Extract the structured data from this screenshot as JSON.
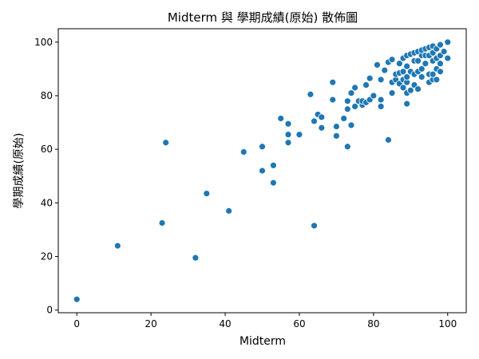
{
  "chart_data": {
    "type": "scatter",
    "title": "Midterm 與 學期成績(原始) 散佈圖",
    "xlabel": "Midterm",
    "ylabel": "學期成績(原始)",
    "xlim": [
      -5,
      105
    ],
    "ylim": [
      -1,
      105
    ],
    "xticks": [
      0,
      20,
      40,
      60,
      80,
      100
    ],
    "yticks": [
      0,
      20,
      40,
      60,
      80,
      100
    ],
    "grid": false,
    "marker_color": "#1f77b4",
    "series": [
      {
        "x": [
          0,
          11,
          23,
          24,
          32,
          35,
          41,
          45,
          50,
          50,
          53,
          53,
          55,
          57,
          57,
          57,
          60,
          63,
          64,
          64,
          65,
          66,
          66,
          69,
          69,
          70,
          70,
          72,
          73,
          73,
          73,
          74,
          74,
          75,
          75,
          76,
          77,
          77,
          78,
          78,
          79,
          79,
          80,
          81,
          82,
          82,
          82,
          83,
          84,
          84,
          85,
          85,
          85,
          86,
          86,
          87,
          87,
          87,
          88,
          88,
          88,
          88,
          89,
          89,
          89,
          89,
          89,
          89,
          90,
          90,
          90,
          91,
          91,
          91,
          91,
          92,
          92,
          92,
          92,
          93,
          93,
          93,
          93,
          94,
          94,
          94,
          95,
          95,
          95,
          95,
          96,
          96,
          96,
          96,
          96,
          97,
          97,
          97,
          97,
          98,
          98,
          98,
          98,
          99,
          100,
          100
        ],
        "y": [
          4,
          24,
          32.5,
          62.5,
          19.5,
          43.5,
          37,
          59,
          52,
          61,
          47.5,
          54,
          71.5,
          62.5,
          65.5,
          69.5,
          65.5,
          80.5,
          31.5,
          70.5,
          73,
          68,
          72,
          78.5,
          85,
          65,
          68.5,
          71.5,
          61,
          75,
          78,
          69,
          81,
          76,
          83,
          78,
          76.5,
          78,
          77.5,
          84,
          78.5,
          86.5,
          80,
          91.5,
          76,
          78.5,
          86,
          89.5,
          63.5,
          92.5,
          81,
          85,
          93.5,
          86,
          88,
          84.5,
          88.5,
          92,
          83,
          86,
          89,
          94,
          77,
          81,
          85,
          87,
          91,
          95,
          82,
          89,
          95.5,
          84,
          88,
          93,
          96,
          82.5,
          89,
          93,
          96.5,
          87,
          90,
          95,
          97,
          92,
          95,
          97.5,
          85,
          88,
          95,
          98,
          86,
          88,
          93,
          96,
          98.5,
          86,
          90,
          94,
          97.5,
          89,
          92,
          95,
          99,
          96.5,
          94,
          100
        ]
      }
    ]
  }
}
